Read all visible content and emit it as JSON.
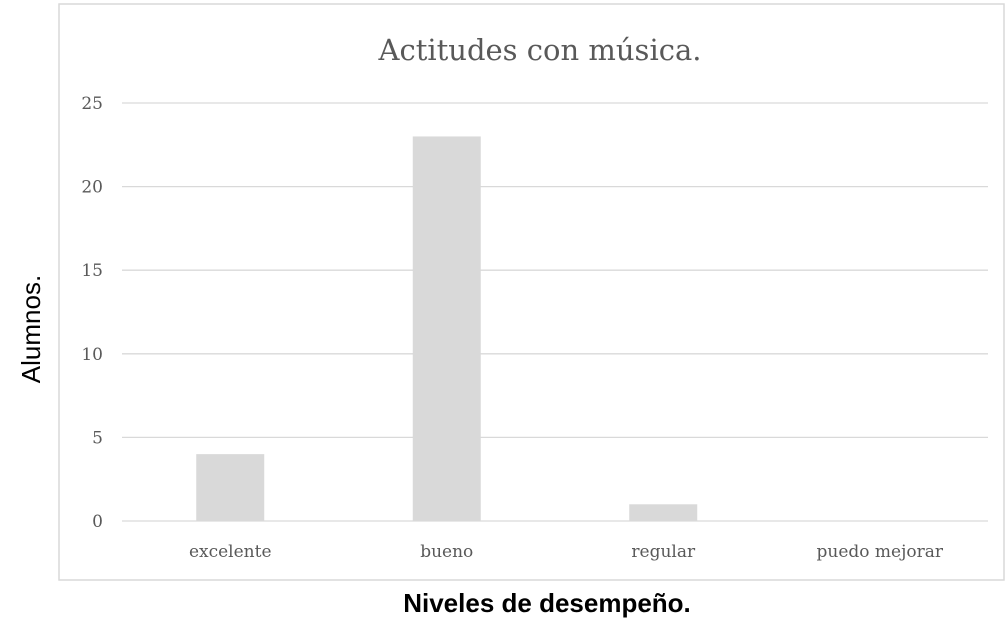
{
  "chart_data": {
    "type": "bar",
    "title": "Actitudes con música.",
    "xlabel": "Niveles de desempeño.",
    "ylabel": "Alumnos.",
    "categories": [
      "excelente",
      "bueno",
      "regular",
      "puedo mejorar"
    ],
    "values": [
      4,
      23,
      1,
      0
    ],
    "ylim": [
      0,
      25
    ],
    "yticks": [
      0,
      5,
      10,
      15,
      20,
      25
    ],
    "grid": true,
    "legend": "none",
    "colors": {
      "bar": "#d9d9d9",
      "grid": "#d9d9d9",
      "frame": "#d9d9d9",
      "text": "#595959"
    }
  }
}
